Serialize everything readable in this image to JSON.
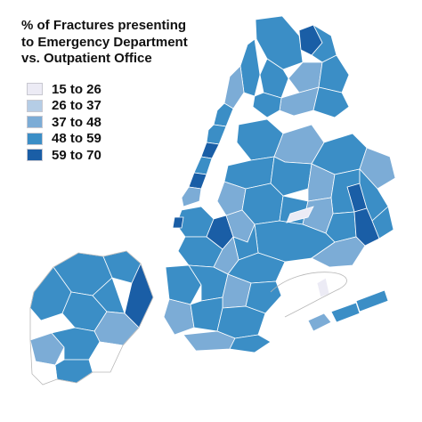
{
  "title": {
    "line1": "% of Fractures presenting",
    "line2": "to Emergency Department",
    "line3": "vs. Outpatient Office"
  },
  "legend": [
    {
      "label": "15 to 26",
      "color": "#ecebf5"
    },
    {
      "label": "26 to 37",
      "color": "#b5cde6"
    },
    {
      "label": "37 to 48",
      "color": "#7cacd6"
    },
    {
      "label": "48 to 59",
      "color": "#3b8ec6"
    },
    {
      "label": "59 to 70",
      "color": "#1a5ea6"
    }
  ]
}
